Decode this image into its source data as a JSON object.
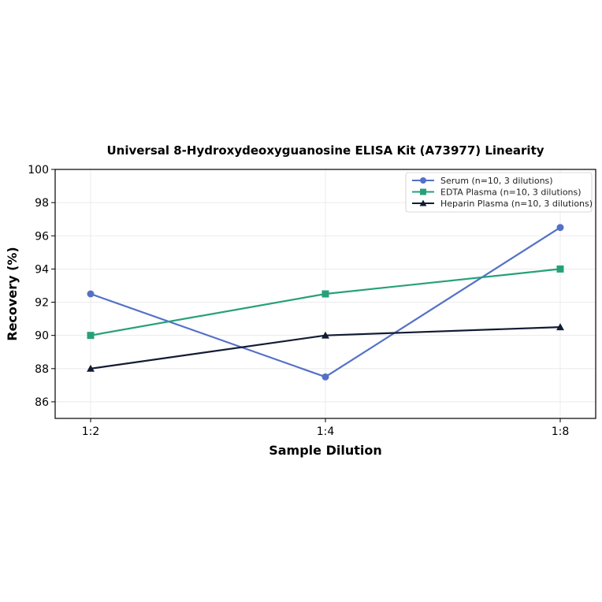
{
  "chart_data": {
    "type": "line",
    "title": "Universal 8-Hydroxydeoxyguanosine ELISA Kit (A73977) Linearity",
    "xlabel": "Sample Dilution",
    "ylabel": "Recovery (%)",
    "categories": [
      "1:2",
      "1:4",
      "1:8"
    ],
    "ylim": [
      85,
      100
    ],
    "yticks": [
      86,
      88,
      90,
      92,
      94,
      96,
      98,
      100
    ],
    "grid": true,
    "legend_position": "top-right",
    "series": [
      {
        "name": "Serum (n=10, 3 dilutions)",
        "values": [
          92.5,
          87.5,
          96.5
        ],
        "color": "#5470c6",
        "marker": "circle"
      },
      {
        "name": "EDTA Plasma (n=10, 3 dilutions)",
        "values": [
          90.0,
          92.5,
          94.0
        ],
        "color": "#27a07a",
        "marker": "square"
      },
      {
        "name": "Heparin Plasma (n=10, 3 dilutions)",
        "values": [
          88.0,
          90.0,
          90.5
        ],
        "color": "#111b33",
        "marker": "triangle"
      }
    ]
  }
}
